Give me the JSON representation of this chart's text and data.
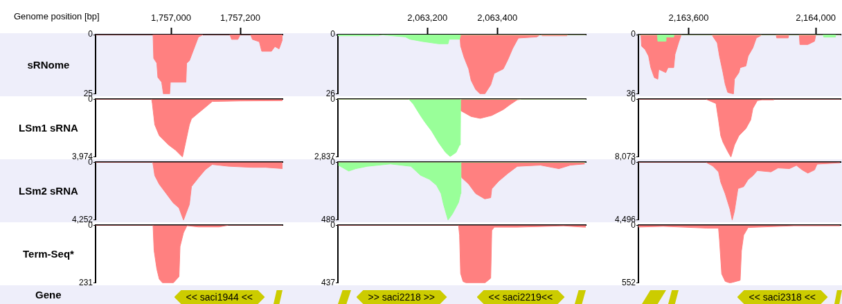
{
  "chart_data": [
    {
      "type": "area",
      "xlabel": "Genome position [bp]",
      "ylabel": "sRNome",
      "xlim": [
        1756782,
        1757322
      ],
      "xticks": [
        {
          "value": 1757000,
          "label": "1,757,000"
        },
        {
          "value": 1757200,
          "label": "1,757,200"
        }
      ],
      "ylim": [
        25,
        0
      ],
      "yticks": [
        0,
        25
      ],
      "series": [
        {
          "color": "#ff8080",
          "x": [
            1756782,
            1756948,
            1756950,
            1756959,
            1756962,
            1756973,
            1756978,
            1756996,
            1756998,
            1757043,
            1757045,
            1757053,
            1757079,
            1757093,
            1757170,
            1757175,
            1757193,
            1757200,
            1757230,
            1757235,
            1757255,
            1757262,
            1757290,
            1757300,
            1757312,
            1757322
          ],
          "values": [
            0,
            0,
            10,
            12,
            18,
            20,
            25,
            25,
            20,
            20,
            12,
            11,
            1,
            0,
            0,
            2,
            2,
            0,
            0,
            2,
            3,
            7,
            7,
            5,
            6,
            2
          ]
        }
      ]
    },
    {
      "type": "area",
      "xlim": [
        2062944,
        2063653
      ],
      "xticks": [
        {
          "value": 2063200,
          "label": "2,063,200"
        },
        {
          "value": 2063400,
          "label": "2,063,400"
        }
      ],
      "ylim": [
        26,
        0
      ],
      "yticks": [
        0,
        26
      ],
      "series": [
        {
          "color": "#ff8080",
          "x": [
            2062944,
            2063150,
            2063153,
            2063173,
            2063175,
            2063293,
            2063295,
            2063305,
            2063318,
            2063325,
            2063338,
            2063351,
            2063364,
            2063381,
            2063391,
            2063417,
            2063430,
            2063444,
            2063460,
            2063513,
            2063523,
            2063529,
            2063599,
            2063602,
            2063653
          ],
          "values": [
            0,
            0,
            2,
            2,
            0,
            0,
            5,
            10,
            15,
            20,
            24,
            26,
            26,
            22,
            17,
            15,
            11,
            6,
            1.5,
            1,
            0,
            0.5,
            0.5,
            0,
            0
          ]
        },
        {
          "color": "#99ff99",
          "x": [
            2062944,
            2063061,
            2063062,
            2063137,
            2063150,
            2063186,
            2063232,
            2063259,
            2063262,
            2063292,
            2063295,
            2063653
          ],
          "values": [
            0.5,
            0.5,
            0,
            1,
            2,
            3,
            4,
            4,
            2,
            2,
            0,
            0
          ]
        }
      ]
    },
    {
      "type": "area",
      "xlim": [
        2163442,
        2164078
      ],
      "xticks": [
        {
          "value": 2163600,
          "label": "2,163,600"
        },
        {
          "value": 2164000,
          "label": "2,164,000"
        }
      ],
      "ylim": [
        36,
        0
      ],
      "yticks": [
        0,
        36
      ],
      "series": [
        {
          "color": "#ff8080",
          "x": [
            2163442,
            2163450,
            2163452,
            2163463,
            2163474,
            2163481,
            2163492,
            2163503,
            2163506,
            2163528,
            2163535,
            2163553,
            2163557,
            2163568,
            2163575,
            2163578,
            2163674,
            2163676,
            2163690,
            2163697,
            2163708,
            2163715,
            2163723,
            2163741,
            2163744,
            2163758,
            2163762,
            2163780,
            2163787,
            2163802,
            2163813,
            2163823,
            2163831,
            2163875,
            2163877,
            2163913,
            2163915,
            2163948,
            2163950,
            2163975,
            2163996,
            2164000,
            2164078
          ],
          "values": [
            0,
            0,
            7,
            9,
            13,
            20,
            26,
            27,
            21,
            23,
            20,
            20,
            12,
            5,
            1,
            0,
            0,
            1,
            5,
            13,
            23,
            30,
            35,
            36,
            27,
            23,
            20,
            19,
            13,
            8,
            2,
            1,
            0,
            0,
            2,
            2,
            0,
            0,
            6,
            6,
            4,
            0,
            0
          ]
        },
        {
          "color": "#99ff99",
          "x": [
            2163442,
            2163502,
            2163503,
            2163528,
            2163529,
            2163553,
            2163554,
            2164023,
            2164025,
            2164061,
            2164062,
            2164078
          ],
          "values": [
            0,
            0,
            4,
            4,
            1.5,
            1.5,
            0,
            0,
            1.5,
            1.5,
            0,
            0
          ]
        }
      ]
    },
    {
      "type": "area",
      "ylabel": "LSm1 sRNA",
      "tick_labels": "y",
      "xlim": [
        1756782,
        1757322
      ],
      "ylim": [
        3974,
        0
      ],
      "yticks": [
        0,
        {
          "value": 3974,
          "label": "3,974"
        }
      ],
      "series": [
        {
          "color": "#ff8080",
          "x": [
            1756782,
            1756944,
            1756946,
            1756953,
            1756966,
            1756993,
            1757013,
            1757033,
            1757053,
            1757059,
            1757079,
            1757099,
            1757119,
            1757200,
            1757322
          ],
          "values": [
            0,
            0,
            300,
            1750,
            2500,
            3140,
            3500,
            3974,
            1750,
            1350,
            950,
            560,
            160,
            120,
            100
          ]
        }
      ]
    },
    {
      "type": "area",
      "tick_labels": "y",
      "xlim": [
        2062944,
        2063653
      ],
      "ylim": [
        2837,
        0
      ],
      "yticks": [
        0,
        {
          "value": 2837,
          "label": "2,837"
        }
      ],
      "series": [
        {
          "color": "#ff8080",
          "x": [
            2062944,
            2063295,
            2063296,
            2063325,
            2063351,
            2063384,
            2063417,
            2063437,
            2063457,
            2063470,
            2063653
          ],
          "values": [
            0,
            0,
            570,
            850,
            940,
            800,
            510,
            260,
            30,
            0,
            0
          ]
        },
        {
          "color": "#99ff99",
          "x": [
            2062944,
            2063147,
            2063160,
            2063180,
            2063193,
            2063212,
            2063232,
            2063252,
            2063265,
            2063282,
            2063292,
            2063294,
            2063295,
            2063653
          ],
          "values": [
            0,
            0,
            250,
            800,
            1130,
            1560,
            2130,
            2610,
            2810,
            2610,
            2240,
            2240,
            0,
            0
          ]
        }
      ]
    },
    {
      "type": "area",
      "tick_labels": "y",
      "xlim": [
        2163442,
        2164078
      ],
      "ylim": [
        8073,
        0
      ],
      "yticks": [
        0,
        {
          "value": 8073,
          "label": "8,073"
        }
      ],
      "series": [
        {
          "color": "#ff8080",
          "x": [
            2163442,
            2163654,
            2163686,
            2163694,
            2163701,
            2163708,
            2163723,
            2163733,
            2163744,
            2163758,
            2163780,
            2163795,
            2163802,
            2163816,
            2163831,
            2163867,
            2163870,
            2164078
          ],
          "values": [
            0,
            0,
            600,
            2900,
            5100,
            6000,
            7300,
            8073,
            6400,
            5100,
            4100,
            2900,
            1300,
            200,
            100,
            100,
            0,
            0
          ]
        }
      ]
    },
    {
      "type": "area",
      "ylabel": "LSm2 sRNA",
      "tick_labels": "y",
      "xlim": [
        1756782,
        1757322
      ],
      "ylim": [
        4252,
        0
      ],
      "yticks": [
        0,
        {
          "value": 4252,
          "label": "4,252"
        }
      ],
      "series": [
        {
          "color": "#ff8080",
          "x": [
            1756782,
            1756947,
            1756949,
            1756953,
            1756966,
            1756986,
            1757006,
            1757023,
            1757036,
            1757053,
            1757059,
            1757079,
            1757099,
            1757119,
            1757166,
            1757233,
            1757273,
            1757322
          ],
          "values": [
            0,
            0,
            300,
            980,
            1620,
            2300,
            2980,
            3360,
            4252,
            3100,
            1790,
            1150,
            550,
            170,
            300,
            380,
            380,
            470
          ]
        }
      ]
    },
    {
      "type": "area",
      "tick_labels": "y",
      "xlim": [
        2062944,
        2063653
      ],
      "ylim": [
        489,
        0
      ],
      "yticks": [
        0,
        489
      ],
      "series": [
        {
          "color": "#ff8080",
          "x": [
            2062944,
            2063296,
            2063298,
            2063318,
            2063338,
            2063364,
            2063381,
            2063384,
            2063404,
            2063430,
            2063457,
            2063523,
            2063576,
            2063609,
            2063650
          ],
          "values": [
            0,
            0,
            130,
            185,
            265,
            310,
            300,
            225,
            160,
            95,
            35,
            25,
            55,
            25,
            15
          ]
        },
        {
          "color": "#99ff99",
          "x": [
            2062945,
            2062975,
            2062995,
            2063028,
            2063094,
            2063153,
            2063180,
            2063206,
            2063226,
            2063239,
            2063246,
            2063259,
            2063272,
            2063289,
            2063295,
            2063296,
            2063653
          ],
          "values": [
            25,
            75,
            55,
            35,
            15,
            35,
            110,
            145,
            195,
            265,
            355,
            489,
            435,
            340,
            265,
            0,
            0
          ]
        }
      ]
    },
    {
      "type": "area",
      "tick_labels": "y",
      "xlim": [
        2163442,
        2164078
      ],
      "ylim": [
        4496,
        0
      ],
      "yticks": [
        0,
        {
          "value": 4496,
          "label": "4,496"
        }
      ],
      "series": [
        {
          "color": "#ff8080",
          "x": [
            2163442,
            2163654,
            2163676,
            2163694,
            2163701,
            2163715,
            2163730,
            2163737,
            2163744,
            2163755,
            2163773,
            2163787,
            2163802,
            2163816,
            2163859,
            2163881,
            2163917,
            2163939,
            2163957,
            2163975,
            2163996,
            2164004,
            2164076
          ],
          "values": [
            0,
            0,
            300,
            750,
            1550,
            2450,
            3650,
            4496,
            3800,
            2050,
            1900,
            1350,
            1050,
            650,
            750,
            450,
            500,
            250,
            600,
            850,
            600,
            150,
            50
          ]
        }
      ]
    },
    {
      "type": "area",
      "ylabel": "Term-Seq*",
      "tick_labels": "y",
      "xlim": [
        1756782,
        1757322
      ],
      "ylim": [
        231,
        0
      ],
      "yticks": [
        0,
        231
      ],
      "series": [
        {
          "color": "#ff8080",
          "x": [
            1756782,
            1756948,
            1756951,
            1756959,
            1756966,
            1756976,
            1757006,
            1757023,
            1757026,
            1757036,
            1757046,
            1757079,
            1757139,
            1757166,
            1757322
          ],
          "values": [
            0,
            0,
            100,
            175,
            215,
            231,
            231,
            205,
            85,
            30,
            2,
            7,
            7,
            0,
            0
          ]
        }
      ]
    },
    {
      "type": "area",
      "tick_labels": "y",
      "xlim": [
        2062944,
        2063653
      ],
      "ylim": [
        437,
        0
      ],
      "yticks": [
        0,
        437
      ],
      "series": [
        {
          "color": "#ff8080",
          "x": [
            2062944,
            2063289,
            2063292,
            2063295,
            2063302,
            2063312,
            2063364,
            2063381,
            2063384,
            2063391,
            2063457,
            2063589,
            2063648,
            2063653
          ],
          "values": [
            0,
            0,
            75,
            365,
            425,
            437,
            437,
            400,
            40,
            15,
            15,
            5,
            15,
            15
          ]
        }
      ]
    },
    {
      "type": "area",
      "tick_labels": "y",
      "xlim": [
        2163442,
        2164078
      ],
      "ylim": [
        552,
        0
      ],
      "yticks": [
        0,
        552
      ],
      "series": [
        {
          "color": "#ff8080",
          "x": [
            2163442,
            2163452,
            2163520,
            2163657,
            2163694,
            2163697,
            2163704,
            2163715,
            2163730,
            2163762,
            2163766,
            2163773,
            2163787,
            2163931,
            2164076
          ],
          "values": [
            17,
            17,
            11,
            28,
            28,
            140,
            465,
            535,
            552,
            525,
            245,
            95,
            22,
            6,
            6
          ]
        }
      ]
    },
    {
      "type": "other",
      "ylabel": "Gene",
      "annotations": [
        "<< saci1944 <<"
      ]
    },
    {
      "type": "other",
      "annotations": [
        ">> saci2218 >>",
        "<< saci2219<<"
      ]
    },
    {
      "type": "other",
      "annotations": [
        "<< saci2318 <<"
      ]
    }
  ]
}
